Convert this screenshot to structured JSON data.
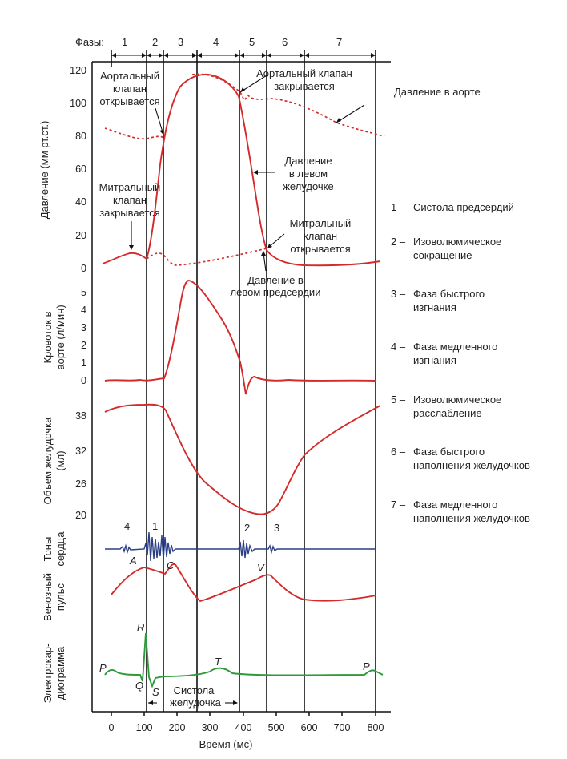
{
  "phases": {
    "title": "Фазы:",
    "labels": [
      "1",
      "2",
      "3",
      "4",
      "5",
      "6",
      "7"
    ]
  },
  "axes": {
    "pressure_label": "Давление (мм рт.ст.)",
    "pressure_ticks": [
      "0",
      "20",
      "40",
      "60",
      "80",
      "100",
      "120"
    ],
    "flow_label_1": "Кровоток в",
    "flow_label_2": "аорте (л/мин)",
    "flow_ticks": [
      "0",
      "1",
      "2",
      "3",
      "4",
      "5"
    ],
    "volume_label_1": "Объем желудочка",
    "volume_label_2": "(мл)",
    "volume_ticks": [
      "20",
      "26",
      "32",
      "38"
    ],
    "sounds_label_1": "Тоны",
    "sounds_label_2": "сердца",
    "venous_label_1": "Венозный",
    "venous_label_2": "пульс",
    "ecg_label_1": "Электрокар-",
    "ecg_label_2": "диограмма",
    "time_ticks": [
      "0",
      "100",
      "200",
      "300",
      "400",
      "500",
      "600",
      "700",
      "800"
    ],
    "time_label": "Время (мс)"
  },
  "annotations": {
    "aortic_open_1": "Аортальный",
    "aortic_open_2": "клапан",
    "aortic_open_3": "открывается",
    "aortic_close_1": "Аортальный клапан",
    "aortic_close_2": "закрывается",
    "aortic_pressure": "Давление в аорте",
    "mitral_close_1": "Митральный",
    "mitral_close_2": "клапан",
    "mitral_close_3": "закрывается",
    "lv_pressure_1": "Давление",
    "lv_pressure_2": "в левом",
    "lv_pressure_3": "желудочке",
    "mitral_open_1": "Митральный",
    "mitral_open_2": "клапан",
    "mitral_open_3": "открывается",
    "la_pressure_1": "Давление в",
    "la_pressure_2": "левом предсердии",
    "sound_4": "4",
    "sound_1": "1",
    "sound_2": "2",
    "sound_3": "3",
    "venous_a": "A",
    "venous_c": "C",
    "venous_v": "V",
    "ecg_p1": "P",
    "ecg_r": "R",
    "ecg_q": "Q",
    "ecg_s": "S",
    "ecg_t": "T",
    "ecg_p2": "P",
    "systole_1": "Систола",
    "systole_2": "желудочка"
  },
  "legend": [
    {
      "num": "1 –",
      "line1": "Систола предсердий",
      "line2": ""
    },
    {
      "num": "2 –",
      "line1": "Изоволюмическое",
      "line2": "сокращение"
    },
    {
      "num": "3 –",
      "line1": "Фаза быстрого",
      "line2": "изгнания"
    },
    {
      "num": "4 –",
      "line1": "Фаза медленного",
      "line2": "изгнания"
    },
    {
      "num": "5 –",
      "line1": "Изоволюмическое",
      "line2": "расслабление"
    },
    {
      "num": "6 –",
      "line1": "Фаза быстрого",
      "line2": "наполнения желудочков"
    },
    {
      "num": "7 –",
      "line1": "Фаза медленного",
      "line2": "наполнения желудочков"
    }
  ],
  "colors": {
    "pressure_flow_volume": "#d42a2a",
    "heart_sounds": "#2b3f86",
    "ecg": "#2f9a3a"
  }
}
